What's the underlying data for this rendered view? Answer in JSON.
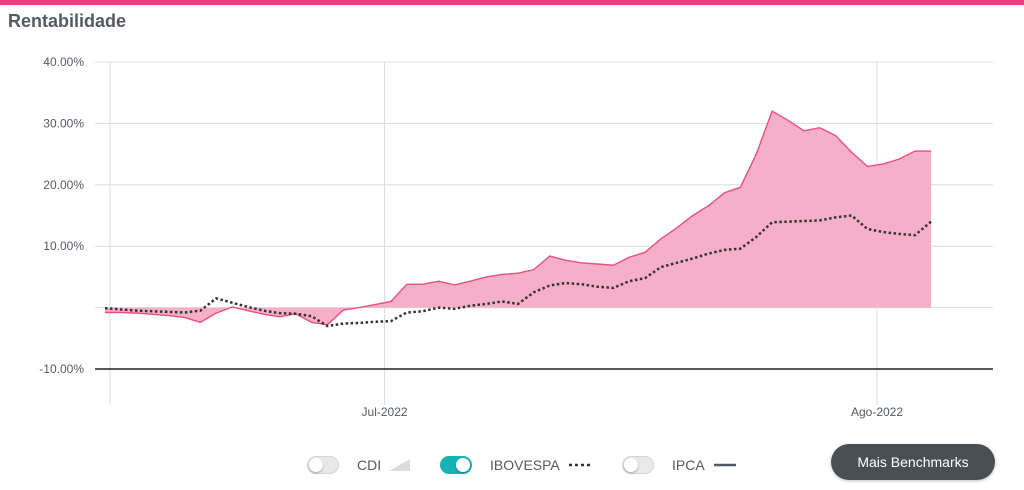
{
  "header": {
    "title": "Rentabilidade"
  },
  "colors": {
    "brand": "#ea3d84",
    "fill": "#f6afc8",
    "line": "#e8507d",
    "benchmark": "#333333",
    "zero_line": "#222222",
    "toggle_on": "#17b3b4",
    "button_bg": "#4a4f55"
  },
  "legend": {
    "cdi": {
      "label": "CDI",
      "enabled": false,
      "icon": "area-swatch-icon"
    },
    "ibovespa": {
      "label": "IBOVESPA",
      "enabled": true,
      "icon": "dotted-line-icon"
    },
    "ipca": {
      "label": "IPCA",
      "enabled": false,
      "icon": "solid-line-icon"
    }
  },
  "actions": {
    "more_benchmarks": "Mais Benchmarks"
  },
  "chart_data": {
    "type": "area",
    "y_ticks": [
      "40.00%",
      "30.00%",
      "20.00%",
      "10.00%",
      "-10.00%"
    ],
    "y_tick_values": [
      40,
      30,
      20,
      10,
      -10
    ],
    "x_ticks": [
      "Jul-2022",
      "Ago-2022"
    ],
    "ylim": [
      -10,
      40
    ],
    "grid": true,
    "x_index_range": [
      0,
      52
    ],
    "x_tick_positions": [
      17.6,
      48.6
    ],
    "series": [
      {
        "name": "",
        "style": "area",
        "values": [
          -0.8,
          -0.8,
          -0.9,
          -1.1,
          -1.3,
          -1.6,
          -2.4,
          -0.9,
          0.1,
          -0.5,
          -1.1,
          -1.5,
          -1.0,
          -2.4,
          -2.8,
          -0.4,
          0.0,
          0.5,
          1.0,
          3.8,
          3.8,
          4.3,
          3.7,
          4.3,
          5.0,
          5.4,
          5.6,
          6.2,
          8.4,
          7.7,
          7.3,
          7.1,
          6.9,
          8.2,
          9.0,
          11.2,
          13.0,
          15.0,
          16.6,
          18.7,
          19.6,
          25.0,
          32.0,
          30.5,
          28.8,
          29.3,
          28.0,
          25.3,
          23.0,
          23.4,
          24.2,
          25.5,
          25.5
        ]
      },
      {
        "name": "IBOVESPA",
        "style": "dotted",
        "values": [
          -0.1,
          -0.3,
          -0.5,
          -0.6,
          -0.7,
          -0.8,
          -0.5,
          1.5,
          0.8,
          0.1,
          -0.5,
          -0.9,
          -1.0,
          -1.4,
          -3.0,
          -2.6,
          -2.5,
          -2.3,
          -2.2,
          -0.8,
          -0.6,
          0.0,
          -0.2,
          0.3,
          0.6,
          1.0,
          0.6,
          2.5,
          3.6,
          4.0,
          3.8,
          3.4,
          3.2,
          4.3,
          4.8,
          6.6,
          7.3,
          8.0,
          8.8,
          9.4,
          9.6,
          11.5,
          13.9,
          14.0,
          14.1,
          14.2,
          14.7,
          15.0,
          12.8,
          12.3,
          12.0,
          11.8,
          14.0
        ]
      }
    ]
  }
}
